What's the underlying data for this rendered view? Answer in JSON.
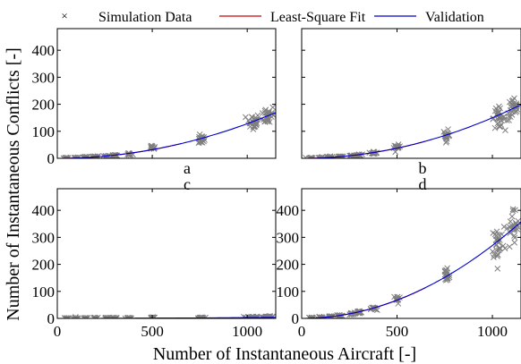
{
  "legend": {
    "placement": "top",
    "entries": [
      {
        "name": "Simulation Data",
        "marker": "x",
        "color": "#7f7f7f"
      },
      {
        "name": "Least-Square Fit",
        "marker": "line",
        "color": "#cc0000"
      },
      {
        "name": "Validation",
        "marker": "line",
        "color": "#0000cc"
      }
    ]
  },
  "xlabel": "Number of Instantaneous Aircraft [-]",
  "ylabel": "Number of Instantaneous Conflicts [-]",
  "chart_data": [
    {
      "type": "scatter",
      "panel": "a",
      "xlim": [
        0,
        1150
      ],
      "ylim": [
        0,
        480
      ],
      "xticks": [
        0,
        500,
        1000
      ],
      "yticks": [
        0,
        100,
        200,
        300,
        400
      ],
      "show_xtick_labels": false,
      "show_ytick_labels": true,
      "grid": false,
      "clusters": [
        {
          "x": 50,
          "y": 0.5
        },
        {
          "x": 100,
          "y": 1.5
        },
        {
          "x": 150,
          "y": 3
        },
        {
          "x": 200,
          "y": 5
        },
        {
          "x": 260,
          "y": 7
        },
        {
          "x": 300,
          "y": 10
        },
        {
          "x": 380,
          "y": 15
        },
        {
          "x": 500,
          "y": 38
        },
        {
          "x": 760,
          "y": 70
        },
        {
          "x": 1030,
          "y": 135
        },
        {
          "x": 1110,
          "y": 160
        }
      ],
      "series": [
        {
          "name": "Simulation Data",
          "style": "x-markers"
        },
        {
          "name": "Least-Square Fit",
          "coefficient": 0.000128,
          "x_range": [
            0,
            650
          ]
        },
        {
          "name": "Validation",
          "coefficient": 0.000128,
          "x_range": [
            0,
            1150
          ]
        }
      ]
    },
    {
      "type": "scatter",
      "panel": "b",
      "xlim": [
        0,
        1150
      ],
      "ylim": [
        0,
        480
      ],
      "xticks": [
        0,
        500,
        1000
      ],
      "yticks": [
        0,
        100,
        200,
        300,
        400
      ],
      "show_xtick_labels": false,
      "show_ytick_labels": false,
      "grid": false,
      "clusters": [
        {
          "x": 50,
          "y": 0.5
        },
        {
          "x": 100,
          "y": 1.5
        },
        {
          "x": 150,
          "y": 4
        },
        {
          "x": 200,
          "y": 6
        },
        {
          "x": 260,
          "y": 9
        },
        {
          "x": 300,
          "y": 12
        },
        {
          "x": 380,
          "y": 20
        },
        {
          "x": 500,
          "y": 40
        },
        {
          "x": 760,
          "y": 85
        },
        {
          "x": 1030,
          "y": 150
        },
        {
          "x": 1110,
          "y": 180
        }
      ],
      "series": [
        {
          "name": "Simulation Data",
          "style": "x-markers"
        },
        {
          "name": "Least-Square Fit",
          "coefficient": 0.00015,
          "x_range": [
            0,
            650
          ]
        },
        {
          "name": "Validation",
          "coefficient": 0.00015,
          "x_range": [
            0,
            1150
          ]
        }
      ]
    },
    {
      "type": "scatter",
      "panel": "c",
      "xlim": [
        0,
        1150
      ],
      "ylim": [
        0,
        480
      ],
      "xticks": [
        0,
        500,
        1000
      ],
      "yticks": [
        0,
        100,
        200,
        300,
        400
      ],
      "show_xtick_labels": true,
      "show_ytick_labels": true,
      "grid": false,
      "clusters": [
        {
          "x": 50,
          "y": 0
        },
        {
          "x": 100,
          "y": 0
        },
        {
          "x": 150,
          "y": 0
        },
        {
          "x": 200,
          "y": 0
        },
        {
          "x": 260,
          "y": 0
        },
        {
          "x": 300,
          "y": 0
        },
        {
          "x": 380,
          "y": 0.5
        },
        {
          "x": 500,
          "y": 1
        },
        {
          "x": 760,
          "y": 2
        },
        {
          "x": 1030,
          "y": 4
        },
        {
          "x": 1110,
          "y": 5
        }
      ],
      "series": [
        {
          "name": "Simulation Data",
          "style": "x-markers"
        },
        {
          "name": "Least-Square Fit",
          "coefficient": 3e-06,
          "x_range": [
            0,
            650
          ]
        },
        {
          "name": "Validation",
          "coefficient": 3e-06,
          "x_range": [
            0,
            1150
          ]
        }
      ]
    },
    {
      "type": "scatter",
      "panel": "d",
      "xlim": [
        0,
        1150
      ],
      "ylim": [
        0,
        480
      ],
      "xticks": [
        0,
        500,
        1000
      ],
      "yticks": [
        0,
        100,
        200,
        300,
        400
      ],
      "show_xtick_labels": true,
      "show_ytick_labels": true,
      "grid": false,
      "clusters": [
        {
          "x": 50,
          "y": 1
        },
        {
          "x": 100,
          "y": 3
        },
        {
          "x": 150,
          "y": 6
        },
        {
          "x": 200,
          "y": 10
        },
        {
          "x": 260,
          "y": 17
        },
        {
          "x": 300,
          "y": 22
        },
        {
          "x": 380,
          "y": 35
        },
        {
          "x": 500,
          "y": 70
        },
        {
          "x": 760,
          "y": 160
        },
        {
          "x": 1030,
          "y": 280
        },
        {
          "x": 1110,
          "y": 330
        }
      ],
      "series": [
        {
          "name": "Simulation Data",
          "style": "x-markers"
        },
        {
          "name": "Least-Square Fit",
          "coefficient": 0.00027,
          "x_range": [
            0,
            650
          ]
        },
        {
          "name": "Validation",
          "coefficient": 0.00027,
          "x_range": [
            0,
            1150
          ]
        }
      ]
    }
  ]
}
